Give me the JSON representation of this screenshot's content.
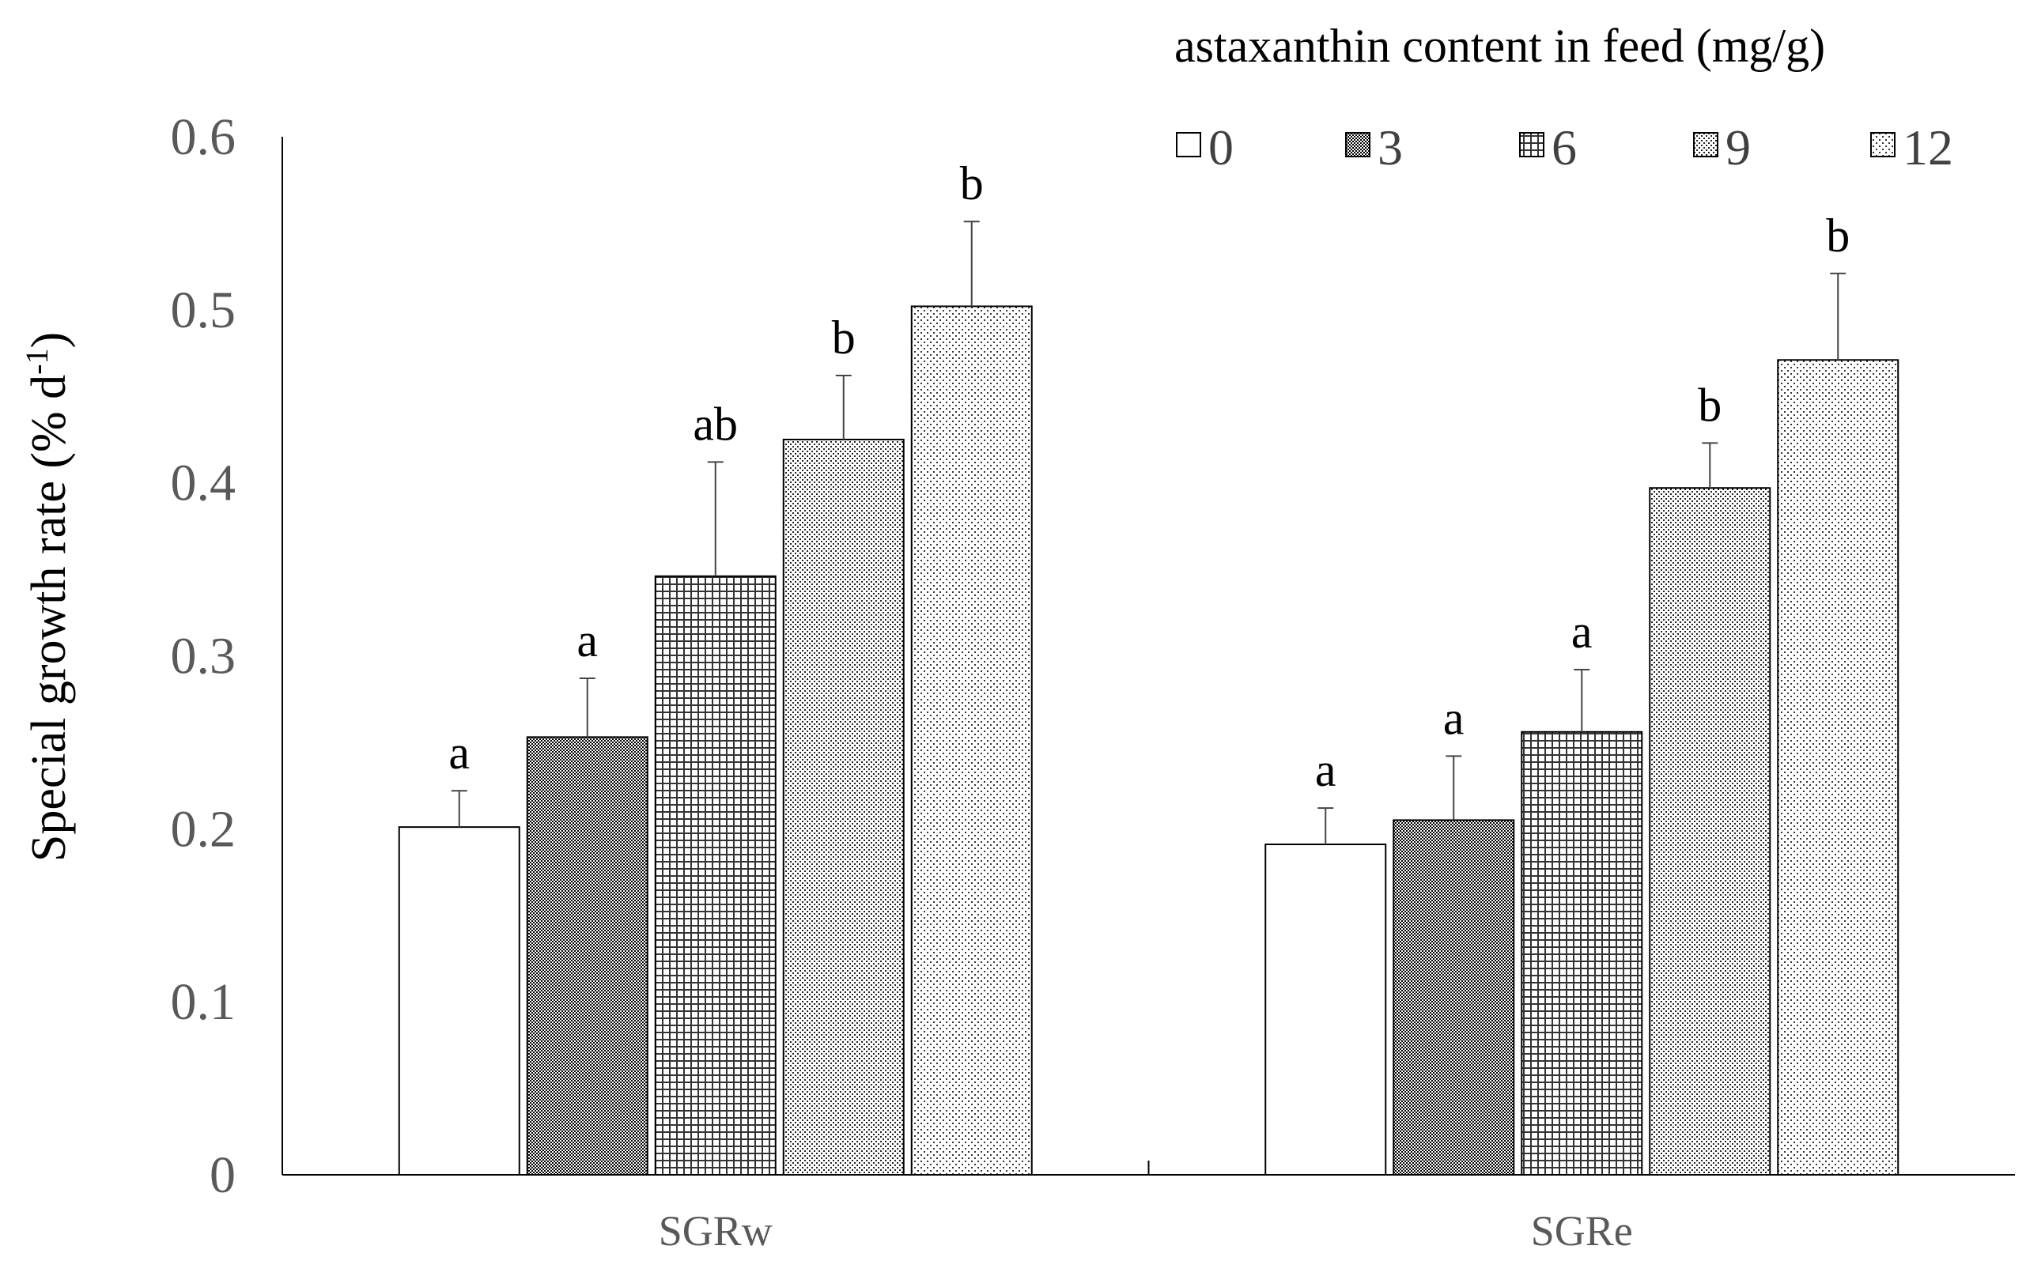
{
  "chart_data": {
    "type": "bar",
    "title": "",
    "xlabel": "",
    "ylabel": "Special  growth  rate    (% d",
    "ylabel_superscript": "-1",
    "ylabel_suffix": ")",
    "ylim": [
      0,
      0.6
    ],
    "yticks": [
      "0",
      "0.1",
      "0.2",
      "0.3",
      "0.4",
      "0.5",
      "0.6"
    ],
    "grid": false,
    "legend_position": "top-right",
    "legend_title": "astaxanthin content  in feed (mg/g)",
    "categories": [
      "SGRw",
      "SGRe"
    ],
    "series": [
      {
        "name": "0",
        "values": [
          0.201,
          0.191
        ],
        "errors": [
          0.021,
          0.021
        ],
        "labels": [
          "a",
          "a"
        ],
        "pattern": "none"
      },
      {
        "name": "3",
        "values": [
          0.253,
          0.205
        ],
        "errors": [
          0.034,
          0.037
        ],
        "labels": [
          "a",
          "a"
        ],
        "pattern": "dense"
      },
      {
        "name": "6",
        "values": [
          0.346,
          0.256
        ],
        "errors": [
          0.066,
          0.036
        ],
        "labels": [
          "ab",
          "a"
        ],
        "pattern": "grid"
      },
      {
        "name": "9",
        "values": [
          0.425,
          0.397
        ],
        "errors": [
          0.037,
          0.026
        ],
        "labels": [
          "b",
          "b"
        ],
        "pattern": "dots-dense"
      },
      {
        "name": "12",
        "values": [
          0.502,
          0.471
        ],
        "errors": [
          0.049,
          0.05
        ],
        "labels": [
          "b",
          "b"
        ],
        "pattern": "dots-sparse"
      }
    ]
  }
}
